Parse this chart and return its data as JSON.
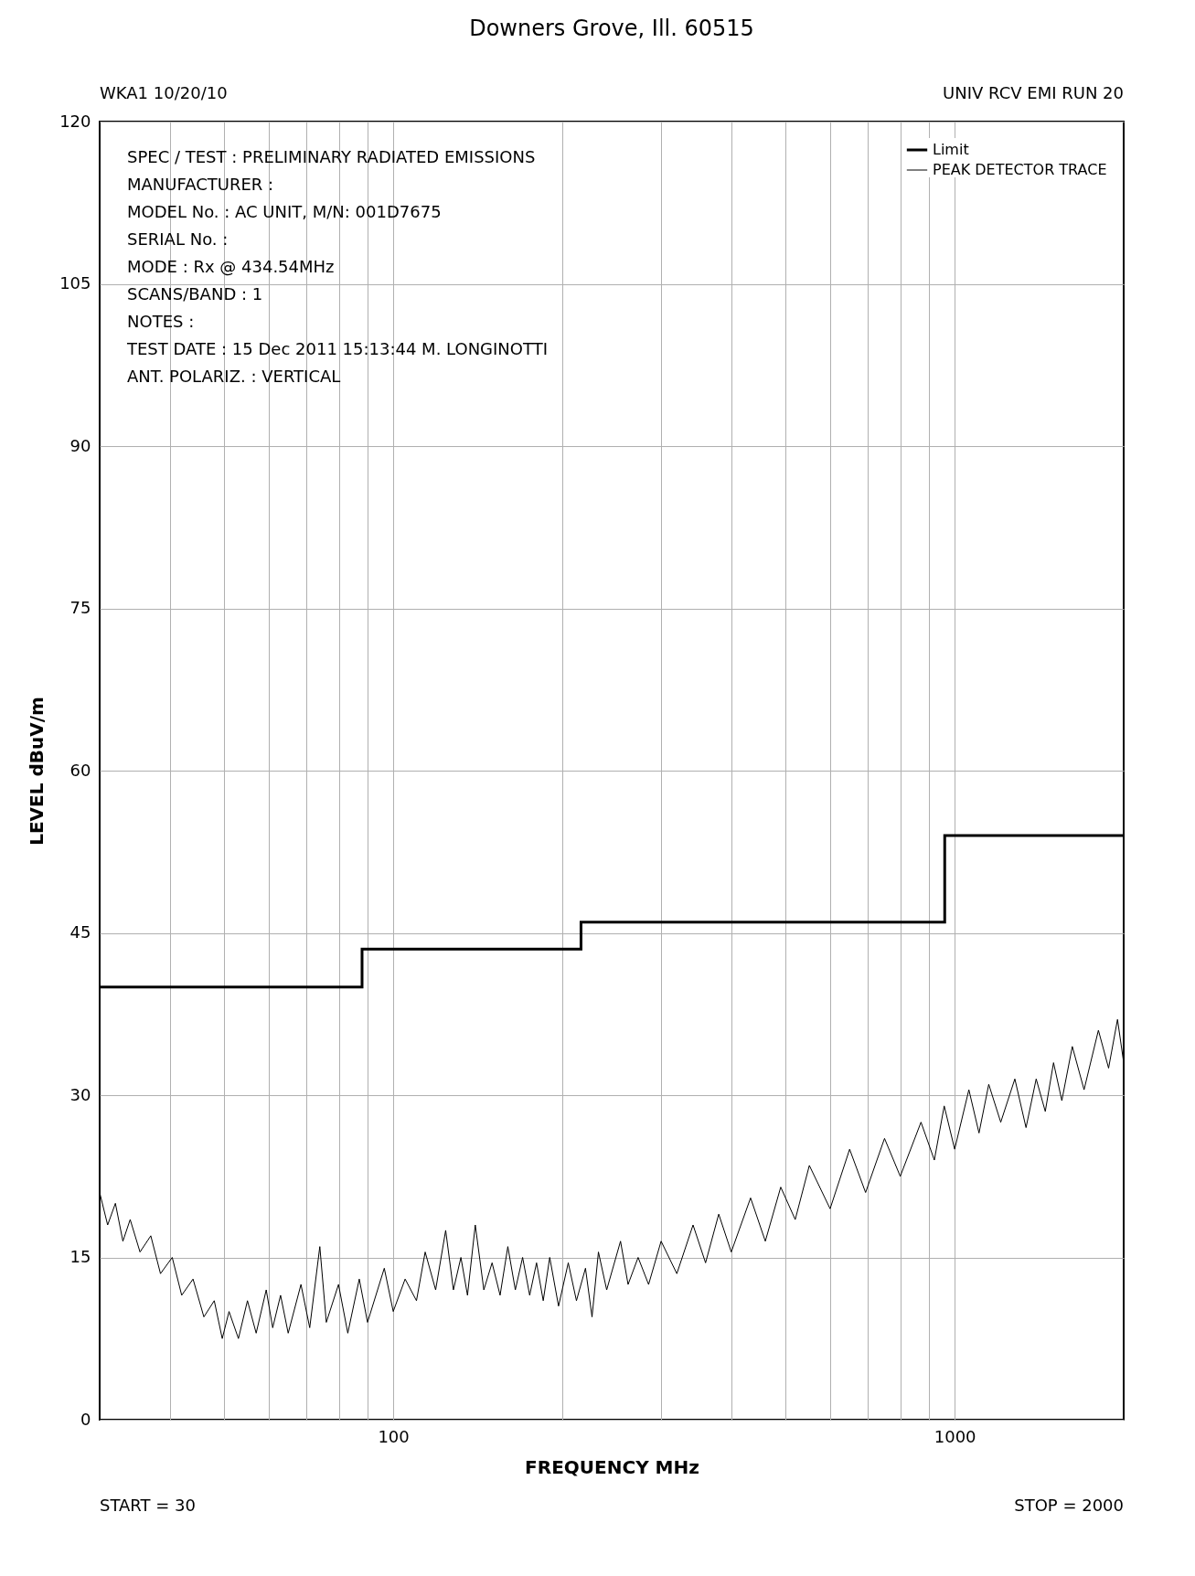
{
  "chart_data": {
    "type": "line",
    "subtitle": "Downers Grove, Ill. 60515",
    "xlabel": "FREQUENCY  MHz",
    "ylabel": "LEVEL dBuV/m",
    "log": "x",
    "grid": true,
    "legend": "top right",
    "xlim": [
      30,
      2000
    ],
    "xticks": [
      {
        "value": 40,
        "label": null
      },
      {
        "value": 50,
        "label": null
      },
      {
        "value": 60,
        "label": null
      },
      {
        "value": 70,
        "label": null
      },
      {
        "value": 80,
        "label": null
      },
      {
        "value": 90,
        "label": null
      },
      100,
      {
        "value": 200,
        "label": null
      },
      {
        "value": 300,
        "label": null
      },
      {
        "value": 400,
        "label": null
      },
      {
        "value": 500,
        "label": null
      },
      {
        "value": 600,
        "label": null
      },
      {
        "value": 700,
        "label": null
      },
      {
        "value": 800,
        "label": null
      },
      {
        "value": 900,
        "label": null
      },
      1000
    ],
    "ylim": [
      0,
      120
    ],
    "yticks": [
      0,
      15,
      30,
      45,
      60,
      75,
      90,
      105,
      120
    ],
    "series": [
      {
        "name": "Limit",
        "type": "step",
        "color": "#000000",
        "x": [
          30,
          88,
          216,
          960,
          2000
        ],
        "values": [
          40,
          43.5,
          46,
          54,
          54
        ]
      },
      {
        "name": "PEAK DETECTOR TRACE",
        "color": "#000000",
        "x": [
          30,
          31,
          32,
          33,
          34,
          35.4,
          37,
          38.5,
          40.4,
          42,
          44,
          46,
          48,
          49.6,
          51,
          53,
          55,
          57,
          59.4,
          61,
          63,
          65,
          68.5,
          71,
          74,
          76,
          79.9,
          83,
          87,
          90,
          96.4,
          100,
          105,
          110,
          114,
          119,
          124,
          128,
          132,
          135.6,
          140,
          145,
          150,
          155,
          160,
          165,
          170,
          175,
          180,
          185,
          190,
          197,
          205,
          212,
          220,
          226,
          232,
          240,
          254,
          262,
          273,
          285,
          300,
          320,
          342,
          360,
          380,
          400,
          433,
          460,
          490,
          520,
          551,
          600,
          650,
          694,
          750,
          800,
          871,
          920,
          958,
          1000,
          1060,
          1105,
          1150,
          1208,
          1280,
          1340,
          1397,
          1450,
          1500,
          1552,
          1620,
          1700,
          1803,
          1880,
          1950,
          2000
        ],
        "values": [
          21,
          18,
          20,
          16.5,
          18.5,
          15.5,
          17,
          13.5,
          15,
          11.5,
          13,
          9.5,
          11,
          7.5,
          10,
          7.5,
          11,
          8,
          12,
          8.5,
          11.5,
          8,
          12.5,
          8.5,
          16,
          9,
          12.5,
          8,
          13,
          9,
          14,
          10,
          13,
          11,
          15.5,
          12,
          17.5,
          12,
          15,
          11.5,
          18,
          12,
          14.5,
          11.5,
          16,
          12,
          15,
          11.5,
          14.5,
          11,
          15,
          10.5,
          14.5,
          11,
          14,
          9.5,
          15.5,
          12,
          16.5,
          12.5,
          15,
          12.5,
          16.5,
          13.5,
          18,
          14.5,
          19,
          15.5,
          20.5,
          16.5,
          21.5,
          18.5,
          23.5,
          19.5,
          25,
          21,
          26,
          22.5,
          27.5,
          24,
          29,
          25,
          30.5,
          26.5,
          31,
          27.5,
          31.5,
          27,
          31.5,
          28.5,
          33,
          29.5,
          34.5,
          30.5,
          36,
          32.5,
          37,
          33
        ]
      }
    ],
    "annotations": [
      "WKA1  10/20/10",
      "UNIV RCV EMI  RUN 20",
      "START = 30",
      "STOP = 2000",
      "SPEC / TEST : PRELIMINARY RADIATED EMISSIONS",
      "MANUFACTURER :",
      "MODEL No. : AC UNIT, M/N: 001D7675",
      "SERIAL No. :",
      "MODE : Rx @ 434.54MHz",
      "SCANS/BAND : 1",
      "NOTES :",
      "TEST DATE : 15 Dec 2011 15:13:44  M. LONGINOTTI",
      "ANT. POLARIZ. : VERTICAL"
    ]
  }
}
